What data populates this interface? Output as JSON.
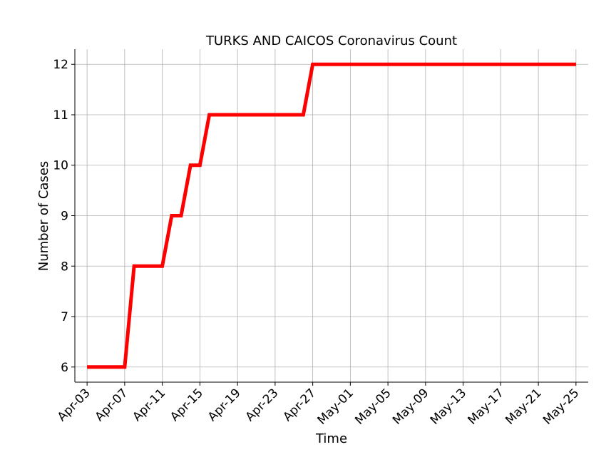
{
  "chart_data": {
    "type": "line",
    "title": "TURKS AND CAICOS Coronavirus Count",
    "xlabel": "Time",
    "ylabel": "Number of Cases",
    "x_ticks": [
      "Apr-03",
      "Apr-07",
      "Apr-11",
      "Apr-15",
      "Apr-19",
      "Apr-23",
      "Apr-27",
      "May-01",
      "May-05",
      "May-09",
      "May-13",
      "May-17",
      "May-21",
      "May-25"
    ],
    "ylim": [
      5.7,
      12.3
    ],
    "y_ticks": [
      6,
      7,
      8,
      9,
      10,
      11,
      12
    ],
    "grid": true,
    "series": [
      {
        "color": "#ff0000",
        "points": [
          {
            "date": "2020-04-03",
            "value": 6
          },
          {
            "date": "2020-04-07",
            "value": 6
          },
          {
            "date": "2020-04-08",
            "value": 8
          },
          {
            "date": "2020-04-11",
            "value": 8
          },
          {
            "date": "2020-04-12",
            "value": 9
          },
          {
            "date": "2020-04-13",
            "value": 9
          },
          {
            "date": "2020-04-14",
            "value": 10
          },
          {
            "date": "2020-04-15",
            "value": 10
          },
          {
            "date": "2020-04-16",
            "value": 11
          },
          {
            "date": "2020-04-26",
            "value": 11
          },
          {
            "date": "2020-04-27",
            "value": 12
          },
          {
            "date": "2020-05-25",
            "value": 12
          }
        ]
      }
    ]
  }
}
